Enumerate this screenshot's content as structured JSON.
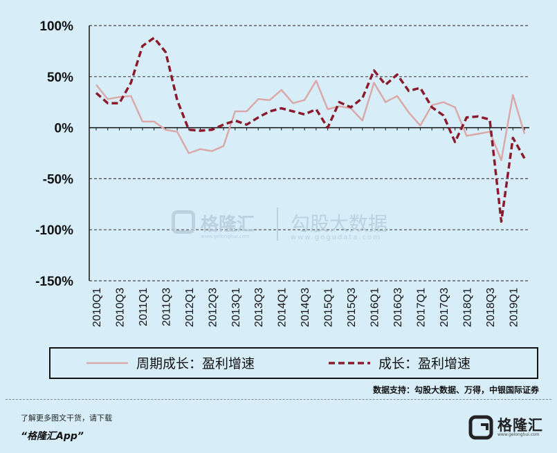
{
  "chart_data": {
    "type": "line",
    "categories": [
      "2010Q1",
      "2010Q2",
      "2010Q3",
      "2010Q4",
      "2011Q1",
      "2011Q2",
      "2011Q3",
      "2011Q4",
      "2012Q1",
      "2012Q2",
      "2012Q3",
      "2012Q4",
      "2013Q1",
      "2013Q2",
      "2013Q3",
      "2013Q4",
      "2014Q1",
      "2014Q2",
      "2014Q3",
      "2014Q4",
      "2015Q1",
      "2015Q2",
      "2015Q3",
      "2015Q4",
      "2016Q1",
      "2016Q2",
      "2016Q3",
      "2016Q4",
      "2017Q1",
      "2017Q2",
      "2017Q3",
      "2017Q4",
      "2018Q1",
      "2018Q2",
      "2018Q3",
      "2018Q4",
      "2019Q1",
      "2019Q2"
    ],
    "tick_labels": [
      "2010Q1",
      "2010Q3",
      "2011Q1",
      "2011Q3",
      "2012Q1",
      "2012Q3",
      "2013Q1",
      "2013Q3",
      "2014Q1",
      "2014Q3",
      "2015Q1",
      "2015Q3",
      "2016Q1",
      "2016Q3",
      "2017Q1",
      "2017Q3",
      "2018Q1",
      "2018Q3",
      "2019Q1"
    ],
    "y_ticks": [
      100,
      50,
      0,
      -50,
      -100,
      -150
    ],
    "y_tick_labels": [
      "100%",
      "50%",
      "0%",
      "-50%",
      "-100%",
      "-150%"
    ],
    "ylim": [
      -150,
      100
    ],
    "grid": "horizontal dashed",
    "legend_position": "bottom",
    "series": [
      {
        "name": "周期成长：盈利增速",
        "style": "solid",
        "color": "#dba8a8",
        "values": [
          42,
          28,
          30,
          31,
          6,
          6,
          -2,
          -4,
          -25,
          -21,
          -23,
          -18,
          16,
          16,
          28,
          27,
          37,
          24,
          27,
          46,
          18,
          21,
          19,
          7,
          44,
          25,
          31,
          15,
          2,
          22,
          25,
          20,
          -8,
          -6,
          -4,
          -32,
          32,
          -6
        ]
      },
      {
        "name": "成长：盈利增速",
        "style": "dashed",
        "color": "#8b1a2c",
        "values": [
          34,
          24,
          24,
          44,
          80,
          88,
          74,
          27,
          -2,
          -3,
          -2,
          3,
          7,
          3,
          10,
          16,
          19,
          16,
          13,
          18,
          0,
          25,
          20,
          29,
          56,
          42,
          52,
          36,
          39,
          20,
          12,
          -14,
          10,
          11,
          8,
          -92,
          -10,
          -30
        ]
      }
    ]
  },
  "source_note": "数据支持：勾股大数据、万得，中银国际证券",
  "watermark": {
    "brand": "格隆汇",
    "brand_url": "www.gelonghui.com",
    "partner": "勾股大数据",
    "partner_url": "www.gogudata.com"
  },
  "footer": {
    "promo_line": "了解更多图文干货，请下载",
    "app_name": "“格隆汇App”",
    "logo_text": "格隆汇",
    "logo_url": "www.gelonghui.com"
  }
}
